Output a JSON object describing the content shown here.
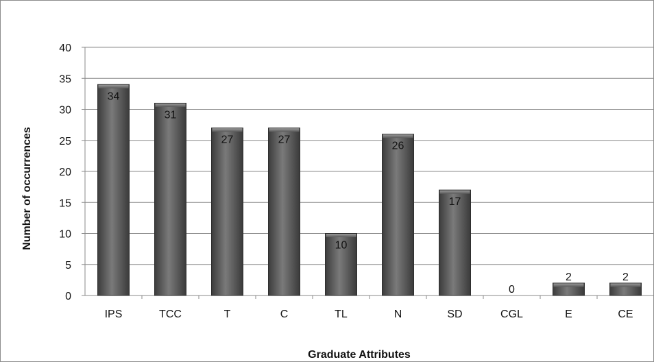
{
  "chart_data": {
    "type": "bar",
    "title": "",
    "xlabel": "Graduate Attributes",
    "ylabel": "Number of occurrences",
    "categories": [
      "IPS",
      "TCC",
      "T",
      "C",
      "TL",
      "N",
      "SD",
      "CGL",
      "E",
      "CE"
    ],
    "values": [
      34,
      31,
      27,
      27,
      10,
      26,
      17,
      0,
      2,
      2
    ],
    "data_labels": [
      "34",
      "31",
      "27",
      "27",
      "10",
      "26",
      "17",
      "0",
      "2",
      "2"
    ],
    "ylim": [
      0,
      40
    ],
    "yticks": [
      "0",
      "5",
      "10",
      "15",
      "20",
      "25",
      "30",
      "35",
      "40"
    ],
    "grid": true,
    "legend": "none",
    "bar_color": "#5a5a5a"
  }
}
